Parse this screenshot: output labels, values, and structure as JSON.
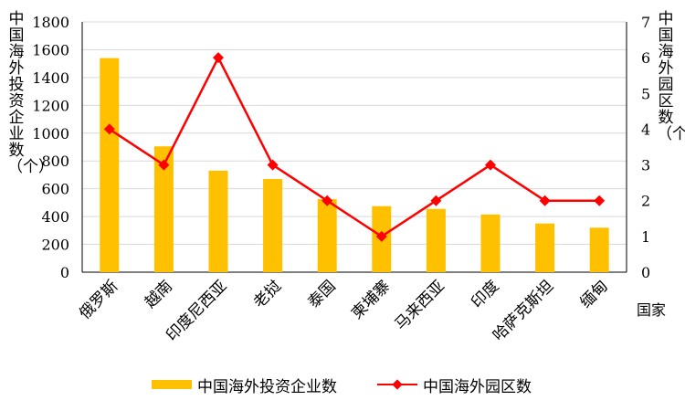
{
  "colors": {
    "bars": "#FFC000",
    "line": "#FF0000",
    "grid": "#D9D9D9",
    "axis": "#000000"
  },
  "chart_data": {
    "type": "bar",
    "categories": [
      "俄罗斯",
      "越南",
      "印度尼西亚",
      "老挝",
      "泰国",
      "柬埔寨",
      "马来西亚",
      "印度",
      "哈萨克斯坦",
      "缅甸"
    ],
    "series": [
      {
        "name": "中国海外投资企业数",
        "type": "bar",
        "axis": "left",
        "values": [
          1540,
          905,
          730,
          670,
          525,
          475,
          455,
          415,
          350,
          320
        ]
      },
      {
        "name": "中国海外园区数",
        "type": "line",
        "axis": "right",
        "values": [
          4,
          3,
          6,
          3,
          2,
          1,
          2,
          3,
          2,
          2
        ]
      }
    ],
    "xlabel": "国家",
    "ylabel": "中国海外投资企业数（个）",
    "y2label": "中国海外园区数（个）",
    "ylim": [
      0,
      1800
    ],
    "y2lim": [
      0,
      7
    ],
    "yticks": [
      "0",
      "200",
      "400",
      "600",
      "800",
      "1000",
      "1200",
      "1400",
      "1600",
      "1800"
    ],
    "y2ticks": [
      "0",
      "1",
      "2",
      "3",
      "4",
      "5",
      "6",
      "7"
    ],
    "grid": true,
    "legend": "bottom"
  }
}
